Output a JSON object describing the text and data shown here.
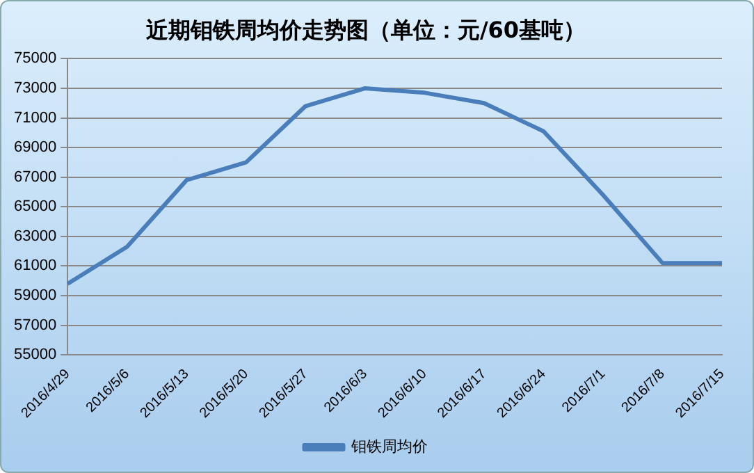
{
  "chart_data": {
    "type": "line",
    "title": "近期钼铁周均价走势图（单位：元/60基吨）",
    "categories": [
      "2016/4/29",
      "2016/5/6",
      "2016/5/13",
      "2016/5/20",
      "2016/5/27",
      "2016/6/3",
      "2016/6/10",
      "2016/6/17",
      "2016/6/24",
      "2016/7/1",
      "2016/7/8",
      "2016/7/15"
    ],
    "series": [
      {
        "name": "钼铁周均价",
        "color": "#4a7ebb",
        "values": [
          59800,
          62300,
          66800,
          68000,
          71800,
          73000,
          72700,
          72000,
          70100,
          65800,
          61200,
          61200
        ]
      }
    ],
    "ylim": [
      55000,
      75000
    ],
    "yticks": [
      55000,
      57000,
      59000,
      61000,
      63000,
      65000,
      67000,
      69000,
      71000,
      73000,
      75000
    ],
    "grid": "y",
    "legend": "bottom",
    "marker": "none",
    "line_style": "solid"
  }
}
